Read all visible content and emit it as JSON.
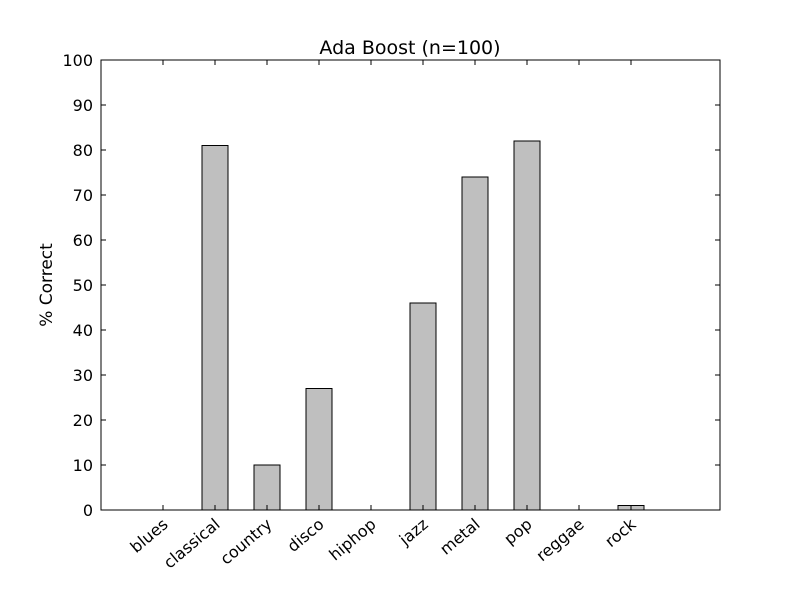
{
  "chart_data": {
    "type": "bar",
    "title": "Ada Boost (n=100)",
    "xlabel": "",
    "ylabel": "% Correct",
    "categories": [
      "blues",
      "classical",
      "country",
      "disco",
      "hiphop",
      "jazz",
      "metal",
      "pop",
      "reggae",
      "rock"
    ],
    "values": [
      0,
      81,
      10,
      27,
      0,
      46,
      74,
      82,
      0,
      1
    ],
    "ylim": [
      0,
      100
    ],
    "yticks": [
      0,
      10,
      20,
      30,
      40,
      50,
      60,
      70,
      80,
      90,
      100
    ],
    "grid": false,
    "legend": "none",
    "bar_color": "#bfbfbf",
    "edge_color": "#000000"
  }
}
